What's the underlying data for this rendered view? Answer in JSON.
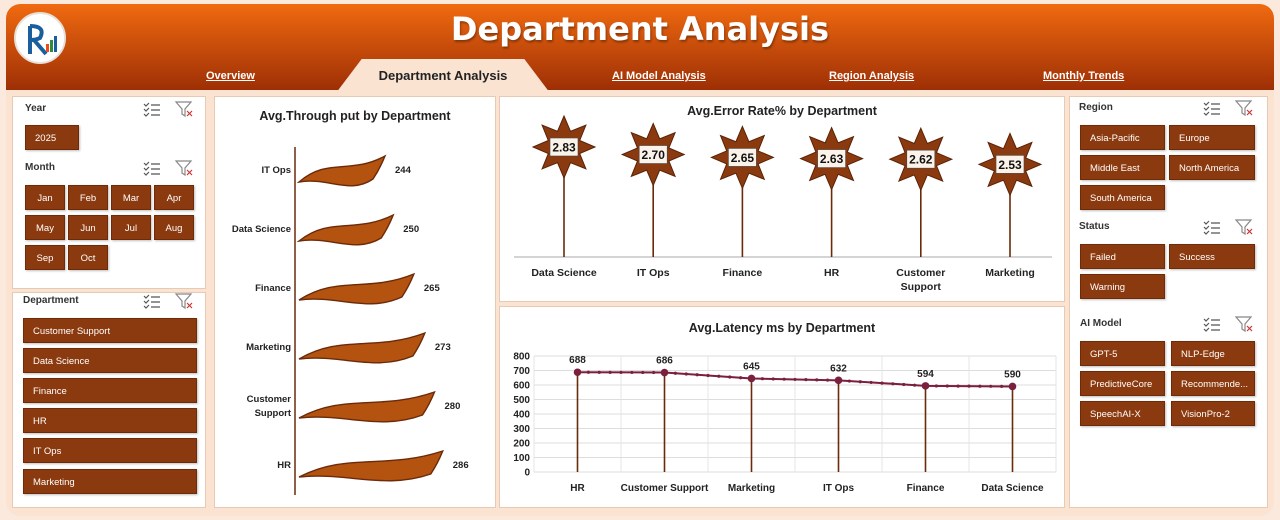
{
  "header": {
    "title": "Department Analysis",
    "tabs": [
      {
        "label": "Overview",
        "active": false
      },
      {
        "label": "Department Analysis",
        "active": true
      },
      {
        "label": "AI Model Analysis",
        "active": false
      },
      {
        "label": "Region Analysis",
        "active": false
      },
      {
        "label": "Monthly Trends",
        "active": false
      }
    ]
  },
  "filters": {
    "year": {
      "label": "Year",
      "items": [
        "2025"
      ]
    },
    "month": {
      "label": "Month",
      "items": [
        "Jan",
        "Feb",
        "Mar",
        "Apr",
        "May",
        "Jun",
        "Jul",
        "Aug",
        "Sep",
        "Oct"
      ]
    },
    "department": {
      "label": "Department",
      "items": [
        "Customer Support",
        "Data Science",
        "Finance",
        "HR",
        "IT Ops",
        "Marketing"
      ]
    },
    "region": {
      "label": "Region",
      "items": [
        "Asia-Pacific",
        "Europe",
        "Middle East",
        "North America",
        "South America"
      ]
    },
    "status": {
      "label": "Status",
      "items": [
        "Failed",
        "Success",
        "Warning"
      ]
    },
    "ai_model": {
      "label": "AI Model",
      "items": [
        "GPT-5",
        "NLP-Edge",
        "PredictiveCore",
        "Recommende...",
        "SpeechAI-X",
        "VisionPro-2"
      ]
    }
  },
  "chart_data": [
    {
      "type": "bar",
      "title": "Avg.Through put by Department",
      "categories": [
        "IT Ops",
        "Data Science",
        "Finance",
        "Marketing",
        "Customer Support",
        "HR"
      ],
      "values": [
        244,
        250,
        265,
        273,
        280,
        286
      ]
    },
    {
      "type": "bar",
      "title": "Avg.Error Rate% by Department",
      "categories": [
        "Data Science",
        "IT Ops",
        "Finance",
        "HR",
        "Customer Support",
        "Marketing"
      ],
      "values": [
        2.83,
        2.7,
        2.65,
        2.63,
        2.62,
        2.53
      ]
    },
    {
      "type": "line",
      "title": "Avg.Latency ms by Department",
      "categories": [
        "HR",
        "Customer Support",
        "Marketing",
        "IT Ops",
        "Finance",
        "Data Science"
      ],
      "values": [
        688,
        686,
        645,
        632,
        594,
        590
      ],
      "ylim": [
        0,
        800
      ],
      "yticks": [
        "0",
        "100",
        "200",
        "300",
        "400",
        "500",
        "600",
        "700",
        "800"
      ],
      "grid": true
    }
  ],
  "colors": {
    "accent": "#8b3a0f",
    "header": "#c44a08",
    "line": "#7a1f3d"
  }
}
